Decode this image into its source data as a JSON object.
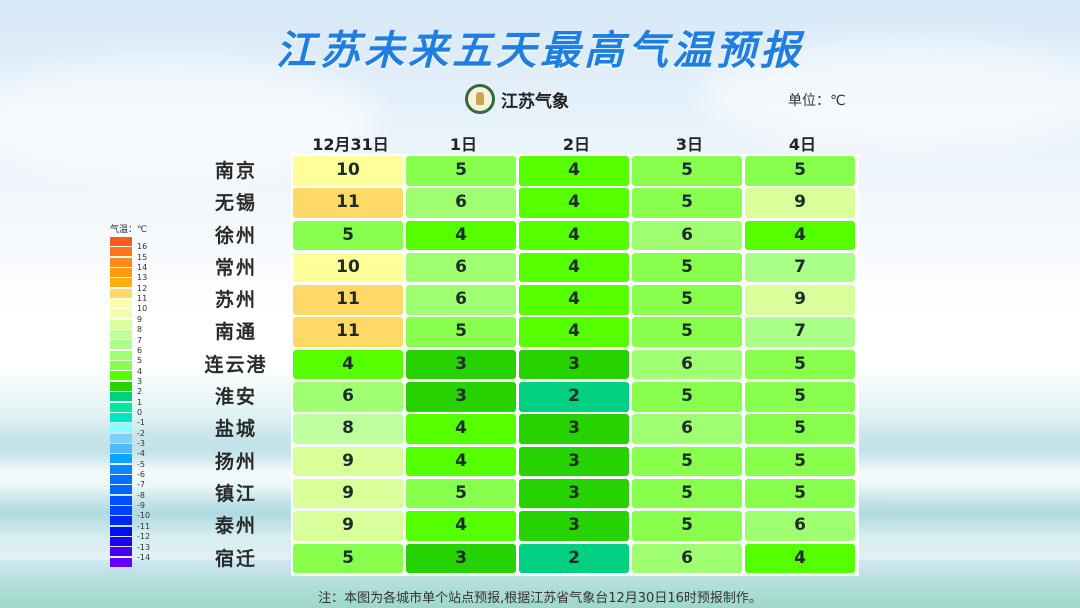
{
  "title": "江苏未来五天最高气温预报",
  "logo": {
    "icon": "jiangsu-meteorology-badge-icon",
    "text": "江苏气象"
  },
  "unit_label": "单位：℃",
  "legend": {
    "title": "气温：℃",
    "colors": [
      "#ff5a1a",
      "#ff7518",
      "#ff8a1a",
      "#ff9a10",
      "#ffad12",
      "#ffd966",
      "#ffffa8",
      "#f0ffaa",
      "#d8ff9a",
      "#c0ffa0",
      "#aaff88",
      "#a0ff70",
      "#88ff4c",
      "#55ff00",
      "#26d200",
      "#00d080",
      "#00e8a0",
      "#00e6c8",
      "#88ffff",
      "#80d0ff",
      "#50b8ff",
      "#10a0ff",
      "#0a86ff",
      "#0070ff",
      "#0066ff",
      "#0050ff",
      "#0040ff",
      "#0028f0",
      "#0010f0",
      "#2000f0",
      "#4a00f0",
      "#6600ff"
    ],
    "labels": [
      "16",
      "15",
      "14",
      "13",
      "12",
      "11",
      "10",
      "9",
      "8",
      "7",
      "6",
      "5",
      "4",
      "3",
      "2",
      "1",
      "0",
      "-1",
      "-2",
      "-3",
      "-4",
      "-5",
      "-6",
      "-7",
      "-8",
      "-9",
      "-10",
      "-11",
      "-12",
      "-13",
      "-14"
    ]
  },
  "chart_data": {
    "type": "heatmap",
    "title": "江苏未来五天最高气温预报",
    "unit": "℃",
    "columns": [
      "12月31日",
      "1日",
      "2日",
      "3日",
      "4日"
    ],
    "rows": [
      "南京",
      "无锡",
      "徐州",
      "常州",
      "苏州",
      "南通",
      "连云港",
      "淮安",
      "盐城",
      "扬州",
      "镇江",
      "泰州",
      "宿迁"
    ],
    "values": [
      [
        10,
        5,
        4,
        5,
        5
      ],
      [
        11,
        6,
        4,
        5,
        9
      ],
      [
        5,
        4,
        4,
        6,
        4
      ],
      [
        10,
        6,
        4,
        5,
        7
      ],
      [
        11,
        6,
        4,
        5,
        9
      ],
      [
        11,
        5,
        4,
        5,
        7
      ],
      [
        4,
        3,
        3,
        6,
        5
      ],
      [
        6,
        3,
        2,
        5,
        5
      ],
      [
        8,
        4,
        3,
        6,
        5
      ],
      [
        9,
        4,
        3,
        5,
        5
      ],
      [
        9,
        5,
        3,
        5,
        5
      ],
      [
        9,
        4,
        3,
        5,
        6
      ],
      [
        5,
        3,
        2,
        6,
        4
      ]
    ],
    "color_scale": {
      "2": "#00d080",
      "3": "#26d200",
      "4": "#55ff00",
      "5": "#88ff4c",
      "6": "#a0ff70",
      "7": "#aaff88",
      "8": "#c0ffa0",
      "9": "#d8ff9a",
      "10": "#ffff99",
      "11": "#ffd966"
    },
    "legend_range": [
      -14,
      16
    ]
  },
  "note": "注：本图为各城市单个站点预报,根据江苏省气象台12月30日16时预报制作。"
}
